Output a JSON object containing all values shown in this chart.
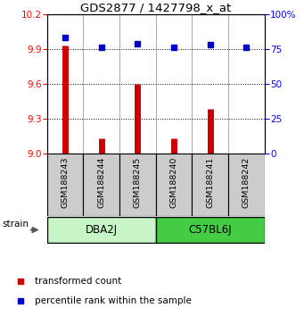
{
  "title": "GDS2877 / 1427798_x_at",
  "samples": [
    "GSM188243",
    "GSM188244",
    "GSM188245",
    "GSM188240",
    "GSM188241",
    "GSM188242"
  ],
  "red_values": [
    9.93,
    9.13,
    9.6,
    9.13,
    9.38,
    9.0
  ],
  "blue_values": [
    83,
    76,
    79,
    76,
    78,
    76
  ],
  "ylim_left": [
    9.0,
    10.2
  ],
  "ylim_right": [
    0,
    100
  ],
  "yticks_left": [
    9.0,
    9.3,
    9.6,
    9.9,
    10.2
  ],
  "yticks_right": [
    0,
    25,
    50,
    75,
    100
  ],
  "ytick_right_labels": [
    "0",
    "25",
    "50",
    "75",
    "100%"
  ],
  "groups": [
    {
      "label": "DBA2J",
      "indices": [
        0,
        1,
        2
      ],
      "facecolor": "#c8f5c8"
    },
    {
      "label": "C57BL6J",
      "indices": [
        3,
        4,
        5
      ],
      "facecolor": "#44cc44"
    }
  ],
  "strain_label": "strain",
  "bar_color": "#cc0000",
  "dot_color": "#0000cc",
  "sample_box_color": "#cccccc",
  "legend_red": "transformed count",
  "legend_blue": "percentile rank within the sample"
}
